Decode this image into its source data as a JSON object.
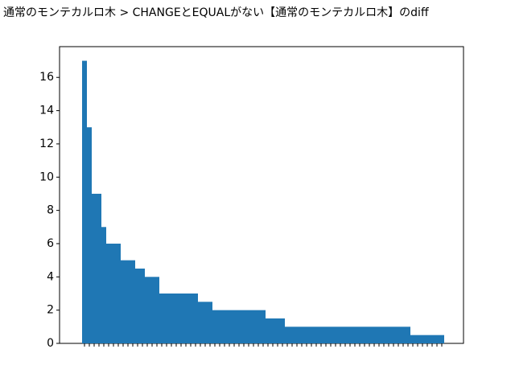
{
  "chart_data": {
    "type": "bar",
    "title": "通常のモンテカルロ木 > CHANGEとEQUALがない【通常のモンテカルロ木】のdiff",
    "categories": [
      null,
      null,
      null,
      null,
      null,
      null,
      null,
      null,
      null,
      null,
      null,
      null,
      null,
      null,
      null,
      null,
      null,
      null,
      null,
      null,
      null,
      null,
      null,
      null,
      null,
      null,
      null,
      null,
      null,
      null,
      null,
      null,
      null,
      null,
      null,
      null,
      null,
      null,
      null,
      null,
      null,
      null,
      null,
      null,
      null,
      null,
      null,
      null,
      null,
      null,
      null,
      null,
      null,
      null,
      null,
      null,
      null,
      null,
      null,
      null,
      null,
      null,
      null,
      null,
      null,
      null,
      null,
      null,
      null,
      null,
      null,
      null,
      null,
      null,
      null
    ],
    "values": [
      17,
      13,
      9,
      9,
      7,
      6,
      6,
      6,
      5,
      5,
      5,
      4.5,
      4.5,
      4,
      4,
      4,
      3,
      3,
      3,
      3,
      3,
      3,
      3,
      3,
      2.5,
      2.5,
      2.5,
      2,
      2,
      2,
      2,
      2,
      2,
      2,
      2,
      2,
      2,
      2,
      1.5,
      1.5,
      1.5,
      1.5,
      1,
      1,
      1,
      1,
      1,
      1,
      1,
      1,
      1,
      1,
      1,
      1,
      1,
      1,
      1,
      1,
      1,
      1,
      1,
      1,
      1,
      1,
      1,
      1,
      1,
      1,
      0.5,
      0.5,
      0.5,
      0.5,
      0.5,
      0.5,
      0.5
    ],
    "color": "#1f77b4",
    "ylim": [
      0,
      17.85
    ],
    "yticks": [
      0,
      2,
      4,
      6,
      8,
      10,
      12,
      14,
      16
    ]
  }
}
